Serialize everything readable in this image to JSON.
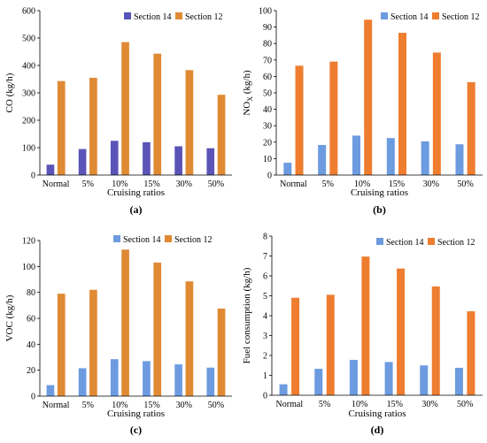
{
  "chart_data": [
    {
      "type": "bar",
      "panel_label": "(a)",
      "categories": [
        "Normal",
        "5%",
        "10%",
        "15%",
        "30%",
        "50%"
      ],
      "series": [
        {
          "name": "Section 14",
          "color": "#5a54b8",
          "values": [
            38,
            95,
            125,
            120,
            105,
            98
          ]
        },
        {
          "name": "Section 12",
          "color": "#e08a34",
          "values": [
            343,
            355,
            485,
            443,
            383,
            293
          ]
        }
      ],
      "xlabel": "Cruising ratios",
      "ylabel": "CO (kg/h)",
      "ylim": [
        0,
        600
      ],
      "yticks": [
        "0",
        "100",
        "200",
        "300",
        "400",
        "500",
        "600"
      ],
      "legend": "top-right",
      "grid": false
    },
    {
      "type": "bar",
      "panel_label": "(b)",
      "categories": [
        "Normal",
        "5%",
        "10%",
        "15%",
        "30%",
        "50%"
      ],
      "series": [
        {
          "name": "Section 14",
          "color": "#6c9be0",
          "values": [
            7.5,
            18.3,
            24,
            22.5,
            20.5,
            18.7
          ]
        },
        {
          "name": "Section 12",
          "color": "#ee7d30",
          "values": [
            66.5,
            69,
            94.5,
            86.5,
            74.5,
            56.5
          ]
        }
      ],
      "xlabel": "Cruising ratios",
      "ylabel": "NOX (kg/h)",
      "ylim": [
        0,
        100
      ],
      "yticks": [
        "0",
        "10",
        "20",
        "30",
        "40",
        "50",
        "60",
        "70",
        "80",
        "90",
        "100"
      ],
      "legend": "top-right",
      "grid": false
    },
    {
      "type": "bar",
      "panel_label": "(c)",
      "categories": [
        "Normal",
        "5%",
        "10%",
        "15%",
        "30%",
        "50%"
      ],
      "series": [
        {
          "name": "Section 14",
          "color": "#6c9be0",
          "values": [
            8.5,
            21.5,
            28.5,
            27,
            24.5,
            22
          ]
        },
        {
          "name": "Section 12",
          "color": "#e08a34",
          "values": [
            79,
            82,
            113,
            103,
            88.5,
            67.5
          ]
        }
      ],
      "xlabel": "Cruising ratios",
      "ylabel": "VOC (kg/h)",
      "ylim": [
        0,
        120
      ],
      "yticks": [
        "0",
        "20",
        "40",
        "60",
        "80",
        "100",
        "120"
      ],
      "legend": "top-right",
      "grid": false
    },
    {
      "type": "bar",
      "panel_label": "(d)",
      "categories": [
        "Normal",
        "5%",
        "10%",
        "15%",
        "30%",
        "50%"
      ],
      "series": [
        {
          "name": "Section 14",
          "color": "#6c9be0",
          "values": [
            0.55,
            1.33,
            1.78,
            1.67,
            1.5,
            1.38
          ]
        },
        {
          "name": "Section 12",
          "color": "#ee7d30",
          "values": [
            4.9,
            5.05,
            6.97,
            6.37,
            5.47,
            4.22
          ]
        }
      ],
      "xlabel": "Cruising ratios",
      "ylabel": "Fuel consumption (kg/h)",
      "ylim": [
        0,
        8
      ],
      "yticks": [
        "0",
        "1",
        "2",
        "3",
        "4",
        "5",
        "6",
        "7",
        "8"
      ],
      "legend": "top-right",
      "grid": false
    }
  ]
}
